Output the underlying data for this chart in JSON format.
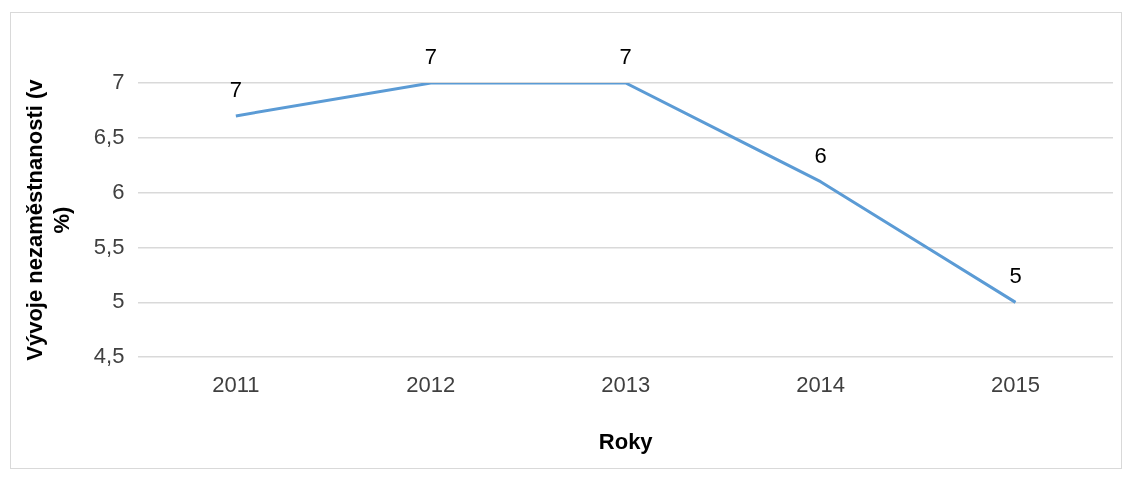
{
  "chart_data": {
    "type": "line",
    "xlabel": "Roky",
    "ylabel": "Vývoje nezaměstnanosti (v %)",
    "categories": [
      "2011",
      "2012",
      "2013",
      "2014",
      "2015"
    ],
    "series": [
      {
        "color": "#5b9bd5",
        "values": [
          6.7,
          7,
          7,
          6.1,
          5
        ],
        "value_labels": [
          "7",
          "7",
          "7",
          "6",
          "5"
        ]
      }
    ],
    "ylim": [
      4.5,
      7
    ],
    "yticks": [
      {
        "value": 4.5,
        "label": "4,5"
      },
      5,
      {
        "value": 5.5,
        "label": "5,5"
      },
      6,
      {
        "value": 6.5,
        "label": "6,5"
      },
      7
    ],
    "grid": "y",
    "legend": false,
    "marker": "none",
    "line_style": "solid"
  }
}
